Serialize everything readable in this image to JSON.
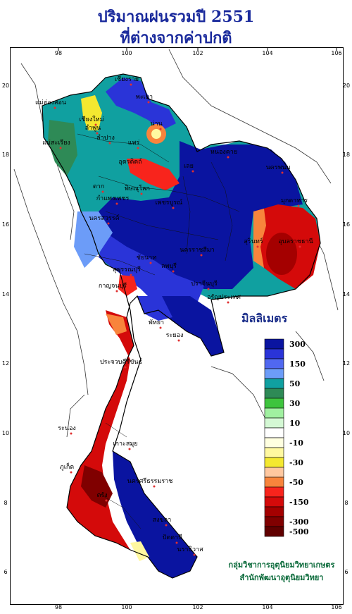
{
  "title_line1": "ปริมาณฝนรวมปี  2551",
  "title_line2": "ที่ต่างจากค่าปกติ",
  "legend": {
    "title": "มิลลิเมตร",
    "bins": [
      {
        "label": "300",
        "color": "#0a14a0"
      },
      {
        "label": "",
        "color": "#2a34d8"
      },
      {
        "label": "150",
        "color": "#5068f0"
      },
      {
        "label": "",
        "color": "#6c9cf8"
      },
      {
        "label": "50",
        "color": "#10a0a0"
      },
      {
        "label": "",
        "color": "#2e8a56"
      },
      {
        "label": "30",
        "color": "#3ec43e"
      },
      {
        "label": "",
        "color": "#a0f0a0"
      },
      {
        "label": "10",
        "color": "#d4f8d4"
      },
      {
        "label": "",
        "color": "#ffffff"
      },
      {
        "label": "-10",
        "color": "#ffffe0"
      },
      {
        "label": "",
        "color": "#fff8a0"
      },
      {
        "label": "-30",
        "color": "#f4e830"
      },
      {
        "label": "",
        "color": "#ffc8a0"
      },
      {
        "label": "-50",
        "color": "#f8843c"
      },
      {
        "label": "",
        "color": "#f8241c"
      },
      {
        "label": "-150",
        "color": "#d40a0a"
      },
      {
        "label": "",
        "color": "#a40000"
      },
      {
        "label": "-300",
        "color": "#800000"
      },
      {
        "label": "-500",
        "color": "#600000"
      }
    ]
  },
  "axes": {
    "lon_ticks": [
      "98",
      "100",
      "102",
      "104",
      "106"
    ],
    "lat_ticks": [
      "20",
      "18",
      "16",
      "14",
      "12",
      "10",
      "8",
      "6"
    ]
  },
  "places": [
    "เชียงราย",
    "แม่ฮ่องสอน",
    "พะเยา",
    "เชียงใหม่",
    "ลำพูน",
    "น่าน",
    "ลำปาง",
    "แพร่",
    "แม่สะเรียง",
    "อุตรดิตถ์",
    "หนองคาย",
    "นครพนม",
    "ตาก",
    "พิษณุโลก",
    "เลย",
    "กำแพงเพชร",
    "เพชรบูรณ์",
    "มุกดาหาร",
    "นครสวรรค์",
    "อุบลราชธานี",
    "นครราชสีมา",
    "สุรินทร์",
    "ชัยนาท",
    "ลพบุรี",
    "สุพรรณบุรี",
    "กาญจนบุรี",
    "ปราจีนบุรี",
    "อรัญประเทศ",
    "พัทยา",
    "ระยอง",
    "ประจวบคีรีขันธ์",
    "ระนอง",
    "เกาะสมุย",
    "ภูเก็ต",
    "นครศรีธรรมราช",
    "ตรัง",
    "สงขลา",
    "ปัตตานี",
    "นราธิวาส"
  ],
  "credit_line1": "กลุ่มวิชาการอุตุนิยมวิทยาเกษตร",
  "credit_line2": "สำนักพัฒนาอุตุนิยมวิทยา"
}
